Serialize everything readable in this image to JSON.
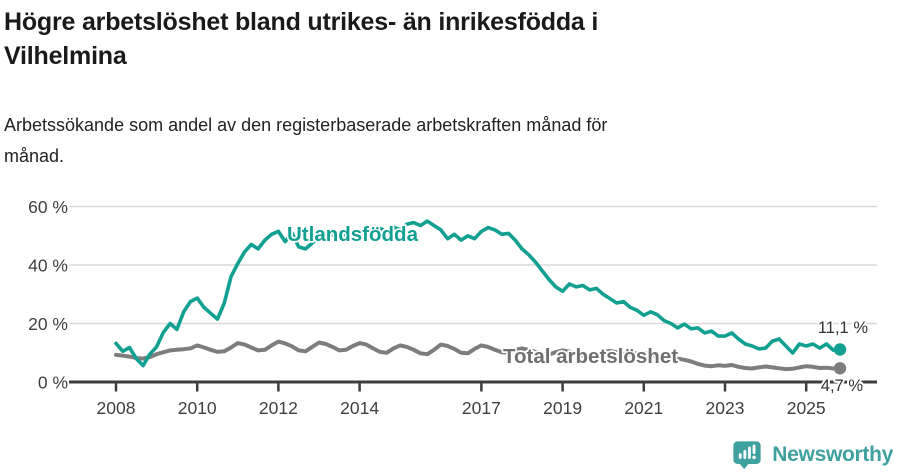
{
  "header": {
    "title_lines": [
      "Högre arbetslöshet bland utrikes- än inrikesfödda i",
      "Vilhelmina"
    ],
    "subtitle_lines": [
      "Arbetssökande som andel av den registerbaserade arbetskraften månad för",
      "månad."
    ]
  },
  "footer": {
    "brand": "Newsworthy"
  },
  "chart_data": {
    "type": "line",
    "title": "Högre arbetslöshet bland utrikes- än inrikesfödda i Vilhelmina",
    "subtitle": "Arbetssökande som andel av den registerbaserade arbetskraften månad för månad.",
    "x_unit": "year (sampled every 2 months)",
    "x_start": 2008.0,
    "x_step": 0.1666667,
    "x_range": [
      2008.0,
      2025.83
    ],
    "ylim": [
      0,
      62
    ],
    "grid": true,
    "yticks": {
      "values": [
        0,
        20,
        40,
        60
      ],
      "labels": [
        "0 %",
        "20 %",
        "40 %",
        "60 %"
      ]
    },
    "xticks": {
      "values": [
        2008,
        2010,
        2012,
        2014,
        2017,
        2019,
        2021,
        2023,
        2025
      ],
      "labels": [
        "2008",
        "2010",
        "2012",
        "2014",
        "2017",
        "2019",
        "2021",
        "2023",
        "2025"
      ]
    },
    "colors": {
      "axis": "#3d3d3d",
      "grid": "#d9d9d9",
      "tick_label": "#3f3f3f",
      "value_label": "#333333",
      "teal": "#12a093",
      "gray": "#7d7d7d",
      "brand_teal": "#3fa0a0"
    },
    "series": [
      {
        "name": "Utlandsfödda",
        "color": "#12a093",
        "label_color": "#12a093",
        "end_value": 11.1,
        "end_label": "11,1 %",
        "values": [
          13.2,
          10.5,
          11.8,
          8.0,
          5.6,
          9.5,
          12.0,
          17.0,
          20.0,
          18.0,
          24.0,
          27.5,
          28.7,
          25.5,
          23.5,
          21.5,
          27.0,
          36.0,
          40.5,
          44.5,
          47.0,
          45.5,
          48.5,
          50.5,
          51.5,
          48.0,
          51.0,
          46.2,
          45.5,
          47.5,
          50.0,
          48.5,
          50.5,
          49.0,
          51.0,
          50.0,
          50.5,
          52.0,
          51.0,
          52.5,
          51.5,
          53.0,
          52.0,
          54.0,
          54.5,
          53.5,
          55.0,
          53.5,
          52.0,
          49.0,
          50.5,
          48.5,
          50.0,
          49.0,
          51.5,
          52.8,
          52.0,
          50.5,
          50.8,
          48.5,
          45.5,
          43.5,
          41.0,
          38.0,
          35.0,
          32.5,
          31.0,
          33.5,
          32.5,
          33.0,
          31.5,
          32.0,
          30.0,
          28.5,
          27.0,
          27.5,
          25.5,
          24.5,
          22.8,
          24.0,
          23.0,
          21.0,
          20.0,
          18.5,
          19.8,
          18.2,
          18.5,
          16.8,
          17.4,
          15.7,
          15.7,
          16.8,
          14.7,
          13.0,
          12.3,
          11.3,
          11.6,
          14.0,
          14.7,
          12.3,
          9.9,
          13.0,
          12.3,
          13.0,
          11.6,
          13.0,
          10.9,
          11.1
        ]
      },
      {
        "name": "Total arbetslöshet",
        "color": "#7d7d7d",
        "label_color": "#6f6f6f",
        "end_value": 4.7,
        "end_label": "4,7 %",
        "values": [
          9.3,
          9.0,
          8.7,
          8.2,
          8.0,
          8.5,
          9.5,
          10.2,
          10.8,
          11.0,
          11.2,
          11.5,
          12.5,
          11.8,
          11.0,
          10.3,
          10.5,
          11.8,
          13.3,
          12.8,
          11.8,
          10.8,
          11.0,
          12.5,
          13.8,
          13.2,
          12.2,
          10.8,
          10.5,
          12.0,
          13.5,
          13.0,
          12.0,
          10.8,
          11.0,
          12.3,
          13.3,
          12.8,
          11.5,
          10.3,
          10.0,
          11.5,
          12.5,
          12.0,
          11.0,
          9.8,
          9.5,
          11.0,
          12.8,
          12.3,
          11.3,
          10.0,
          9.8,
          11.3,
          12.5,
          12.0,
          11.0,
          10.2,
          10.0,
          11.0,
          11.5,
          11.0,
          10.3,
          9.6,
          9.4,
          10.2,
          10.8,
          10.4,
          9.7,
          9.0,
          8.8,
          9.6,
          10.3,
          10.6,
          10.2,
          9.7,
          9.4,
          9.8,
          10.0,
          9.5,
          8.8,
          8.2,
          7.8,
          8.0,
          7.6,
          7.0,
          6.2,
          5.6,
          5.4,
          5.7,
          5.5,
          5.8,
          5.2,
          4.8,
          4.6,
          5.0,
          5.3,
          5.0,
          4.7,
          4.4,
          4.5,
          5.0,
          5.4,
          5.2,
          4.8,
          4.9,
          4.6,
          4.7
        ]
      }
    ],
    "legend_position": "inline-annotations"
  }
}
